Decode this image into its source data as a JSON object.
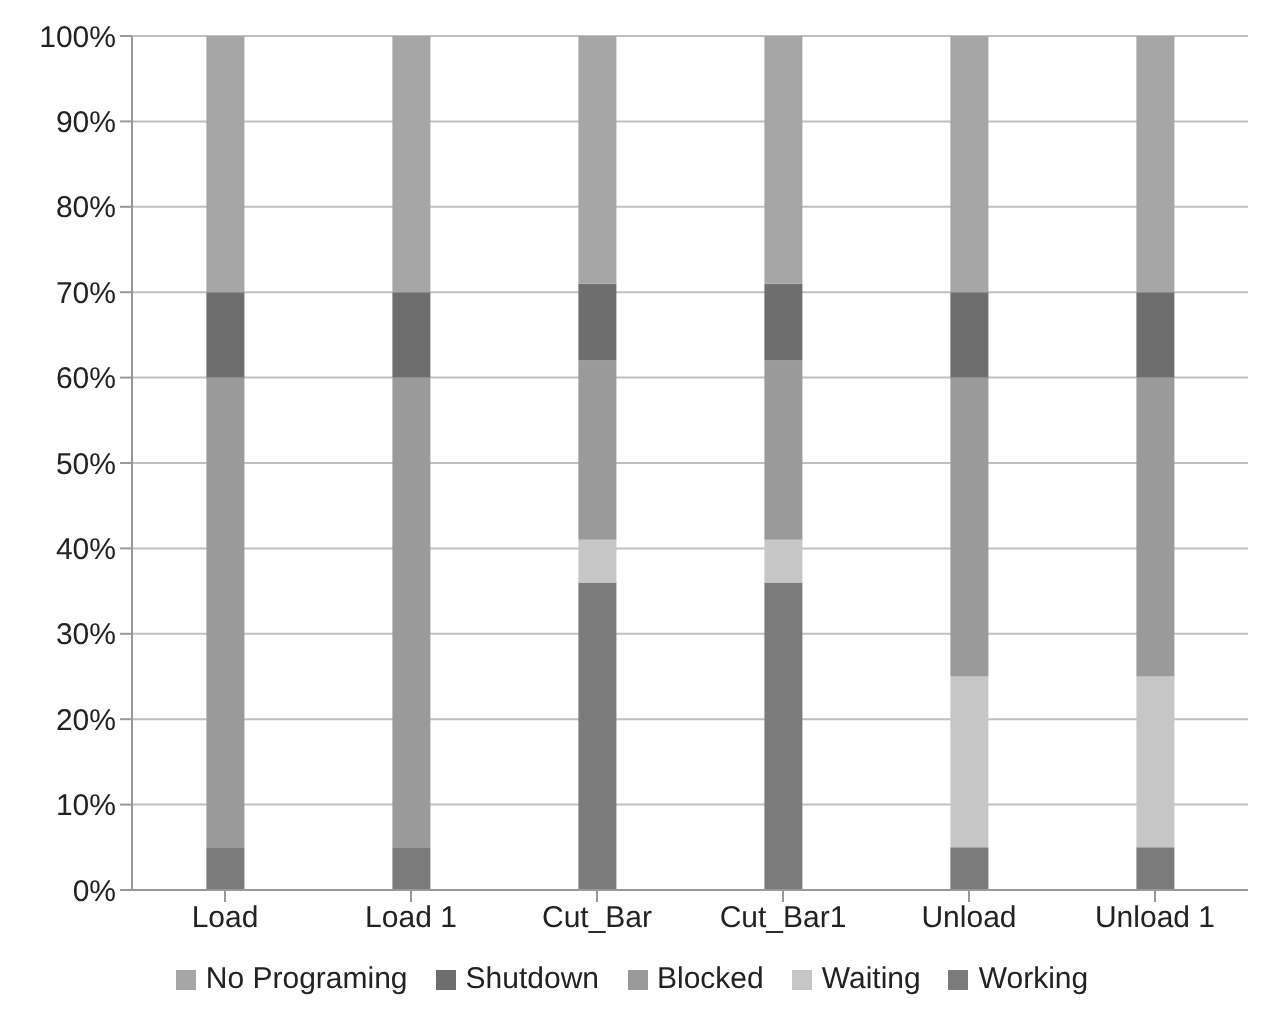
{
  "chart_data": {
    "type": "bar",
    "stacked": true,
    "categories": [
      "Load",
      "Load 1",
      "Cut_Bar",
      "Cut_Bar1",
      "Unload",
      "Unload 1"
    ],
    "series": [
      {
        "name": "Working",
        "color": "#7b7b7b",
        "values": [
          5,
          5,
          36,
          36,
          5,
          5
        ]
      },
      {
        "name": "Waiting",
        "color": "#c6c6c6",
        "values": [
          0,
          0,
          5,
          5,
          20,
          20
        ]
      },
      {
        "name": "Blocked",
        "color": "#9a9a9a",
        "values": [
          55,
          55,
          21,
          21,
          35,
          35
        ]
      },
      {
        "name": "Shutdown",
        "color": "#6e6e6e",
        "values": [
          10,
          10,
          9,
          9,
          10,
          10
        ]
      },
      {
        "name": "No Programing",
        "color": "#a6a6a6",
        "values": [
          30,
          30,
          29,
          29,
          30,
          30
        ]
      }
    ],
    "ylim": [
      0,
      100
    ],
    "yticks": [
      {
        "value": 0,
        "label": "0%"
      },
      {
        "value": 10,
        "label": "10%"
      },
      {
        "value": 20,
        "label": "20%"
      },
      {
        "value": 30,
        "label": "30%"
      },
      {
        "value": 40,
        "label": "40%"
      },
      {
        "value": 50,
        "label": "50%"
      },
      {
        "value": 60,
        "label": "60%"
      },
      {
        "value": 70,
        "label": "70%"
      },
      {
        "value": 80,
        "label": "80%"
      },
      {
        "value": 90,
        "label": "90%"
      },
      {
        "value": 100,
        "label": "100%"
      }
    ],
    "grid": "y",
    "legend": "bottom"
  }
}
